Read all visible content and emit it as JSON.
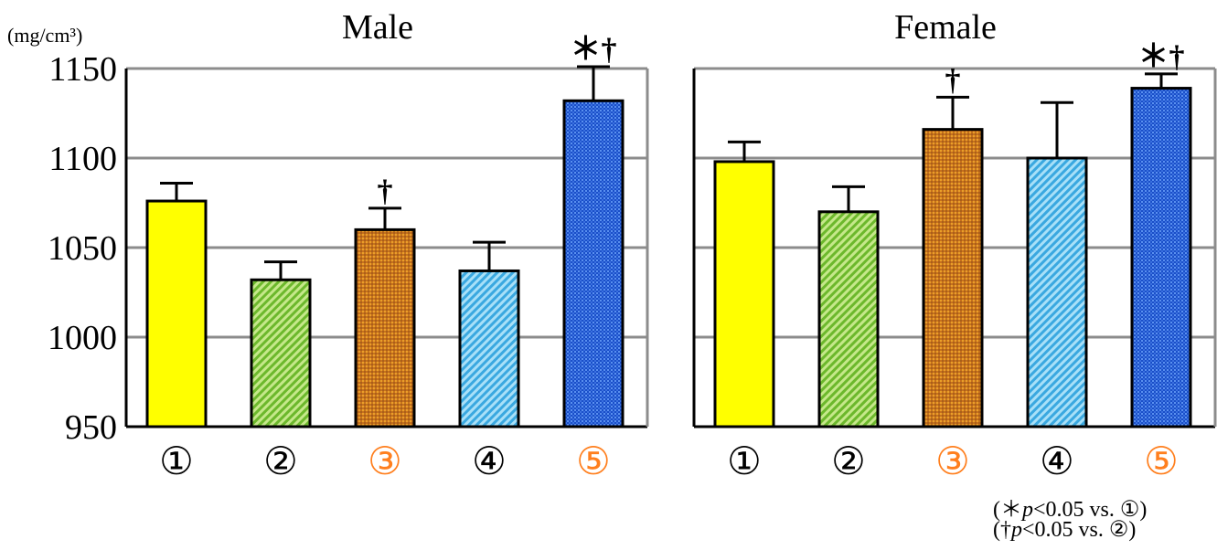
{
  "y_unit": "(mg/cm³)",
  "chart_data": [
    {
      "type": "bar",
      "title": "Male",
      "categories": [
        "①",
        "②",
        "③",
        "④",
        "⑤"
      ],
      "values": [
        1076,
        1032,
        1060,
        1037,
        1132
      ],
      "errors": [
        10,
        10,
        12,
        16,
        19
      ],
      "significance": [
        "",
        "",
        "†",
        "",
        "＊†"
      ],
      "ylim": [
        950,
        1150
      ],
      "yticks": [
        "950",
        "1000",
        "1050",
        "1100",
        "1150"
      ],
      "grid": true
    },
    {
      "type": "bar",
      "title": "Female",
      "categories": [
        "①",
        "②",
        "③",
        "④",
        "⑤"
      ],
      "values": [
        1098,
        1070,
        1116,
        1100,
        1139
      ],
      "errors": [
        11,
        14,
        18,
        31,
        8
      ],
      "significance": [
        "",
        "",
        "†",
        "",
        "＊†"
      ],
      "ylim": [
        950,
        1150
      ],
      "grid": true
    }
  ],
  "category_colors": {
    "fills": [
      "#ffff00",
      "#7cc43a",
      "#d98a1e",
      "#4fb8e8",
      "#1e5fd6"
    ],
    "label_colors": [
      "#000000",
      "#000000",
      "#ff7f1e",
      "#000000",
      "#ff7f1e"
    ]
  },
  "footnotes": {
    "line1_prefix": "(＊",
    "line1_p": "p",
    "line1_suffix": "<0.05 vs. ①)",
    "line2_prefix": "(†",
    "line2_p": "p",
    "line2_suffix": "<0.05 vs. ②)"
  }
}
